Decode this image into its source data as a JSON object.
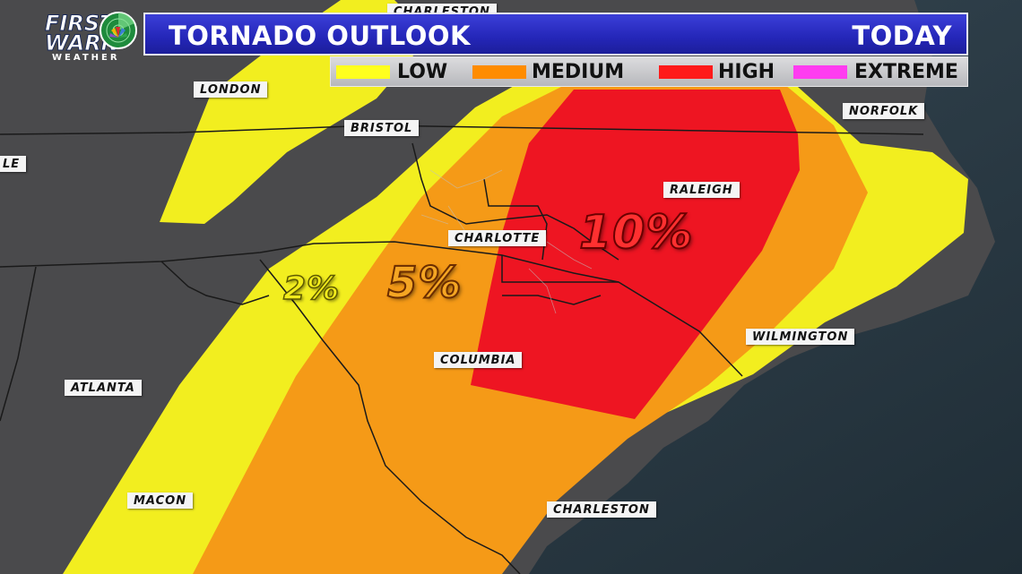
{
  "header": {
    "logo_line1": "FIRST",
    "logo_line2": "WARN",
    "logo_line3": "WEATHER",
    "title": "TORNADO OUTLOOK",
    "timeframe": "TODAY"
  },
  "legend": [
    {
      "label": "LOW",
      "color": "#ffff1e"
    },
    {
      "label": "MEDIUM",
      "color": "#ff8c00"
    },
    {
      "label": "HIGH",
      "color": "#ff1a1a"
    },
    {
      "label": "EXTREME",
      "color": "#ff3cf0"
    }
  ],
  "risk_labels": {
    "low": "2%",
    "medium": "5%",
    "high": "10%"
  },
  "cities": {
    "charleston_wv": "CHARLESTON",
    "london": "LONDON",
    "bristol": "BRISTOL",
    "norfolk": "NORFOLK",
    "raleigh": "RALEIGH",
    "charlotte": "CHARLOTTE",
    "columbia": "COLUMBIA",
    "wilmington": "WILMINGTON",
    "atlanta": "ATLANTA",
    "macon": "MACON",
    "charleston_sc": "CHARLESTON",
    "partial_left": "LE"
  }
}
